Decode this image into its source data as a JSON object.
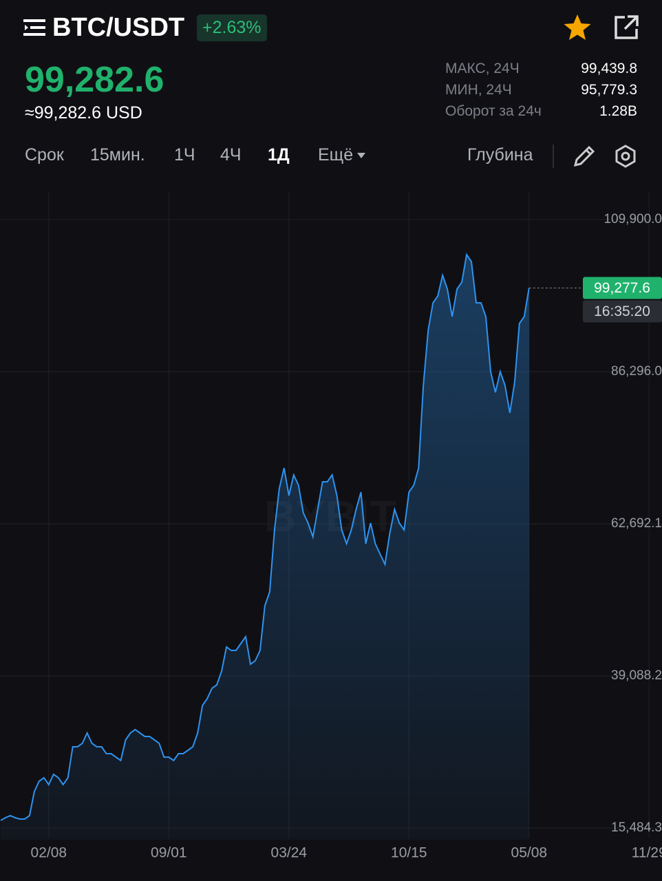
{
  "header": {
    "pair": "BTC/USDT",
    "change": "+2.63%"
  },
  "price": {
    "last": "99,282.6",
    "usd": "≈99,282.6 USD"
  },
  "stats": [
    {
      "label": "МАКС, 24Ч",
      "value": "99,439.8"
    },
    {
      "label": "МИН, 24Ч",
      "value": "95,779.3"
    },
    {
      "label": "Оборот за 24ч",
      "value": "1.28B"
    }
  ],
  "toolbar": {
    "items": [
      "Срок",
      "15мин.",
      "1Ч",
      "4Ч",
      "1Д",
      "Ещё"
    ],
    "depth": "Глубина"
  },
  "chart_data": {
    "type": "line",
    "watermark": "BYBIT",
    "color": "#2e93f0",
    "categories": [
      null,
      null,
      null,
      null,
      null,
      null,
      null,
      null,
      null,
      null,
      "02/08",
      null,
      null,
      null,
      null,
      null,
      null,
      null,
      null,
      null,
      null,
      null,
      null,
      null,
      null,
      null,
      null,
      null,
      null,
      null,
      null,
      null,
      null,
      null,
      null,
      "09/01",
      null,
      null,
      null,
      null,
      null,
      null,
      null,
      null,
      null,
      null,
      null,
      null,
      null,
      null,
      null,
      null,
      null,
      null,
      null,
      null,
      null,
      null,
      null,
      null,
      "03/24",
      null,
      null,
      null,
      null,
      null,
      null,
      null,
      null,
      null,
      null,
      null,
      null,
      null,
      null,
      null,
      null,
      null,
      null,
      null,
      null,
      null,
      null,
      null,
      null,
      "10/15",
      null,
      null,
      null,
      null,
      null,
      null,
      null,
      null,
      null,
      null,
      null,
      null,
      null,
      null,
      null,
      null,
      null,
      null,
      null,
      null,
      null,
      null,
      null,
      null,
      "05/08",
      null,
      null,
      null,
      null,
      null,
      null,
      null,
      null,
      null,
      null,
      null,
      null,
      null,
      null,
      null,
      null,
      null,
      null,
      null,
      null,
      null,
      null,
      null,
      null,
      "11/29"
    ],
    "values": [
      16659,
      17086,
      17406,
      17086,
      16872,
      16872,
      17406,
      21144,
      22746,
      23280,
      22212,
      23814,
      23280,
      22212,
      23280,
      28086,
      28086,
      28620,
      30222,
      28620,
      28086,
      28086,
      27018,
      27018,
      26484,
      25950,
      29154,
      30222,
      30756,
      30222,
      29688,
      29688,
      29154,
      28620,
      26484,
      26484,
      25950,
      27018,
      27018,
      27552,
      28086,
      30222,
      34494,
      35562,
      37164,
      37698,
      39834,
      43572,
      43038,
      43038,
      44106,
      45174,
      40902,
      41436,
      43038,
      49980,
      52116,
      61728,
      68136,
      71340,
      67068,
      70272,
      68670,
      64398,
      62796,
      60660,
      64932,
      69204,
      69204,
      70272,
      67068,
      61728,
      59592,
      61728,
      64932,
      67602,
      59592,
      62796,
      59592,
      57990,
      56388,
      61194,
      64932,
      62796,
      61728,
      67602,
      68670,
      71340,
      84156,
      92700,
      96972,
      98040,
      101244,
      99108,
      94836,
      99108,
      100176,
      104448,
      103380,
      96972,
      96972,
      94836,
      86292,
      83088,
      86292,
      84156,
      79884,
      84690,
      93768,
      94836,
      99277.6,
      null,
      null,
      null,
      null,
      null,
      null,
      null,
      null,
      null,
      null,
      null,
      null,
      null,
      null,
      null,
      null,
      null,
      null,
      null,
      null,
      null,
      null,
      null,
      null,
      null
    ],
    "ylim": [
      13668,
      115131
    ],
    "yticks": [
      {
        "value": 15484.3,
        "label": "15,484.3"
      },
      {
        "value": 39088.2,
        "label": "39,088.2"
      },
      {
        "value": 62692.1,
        "label": "62,692.1"
      },
      {
        "value": 86296,
        "label": "86,296.0"
      },
      {
        "value": 109900,
        "label": "109,900.0"
      }
    ],
    "grid": true,
    "price_line": {
      "value": 99277.6,
      "label": "99,277.6",
      "countdown": "16:35:20"
    }
  }
}
